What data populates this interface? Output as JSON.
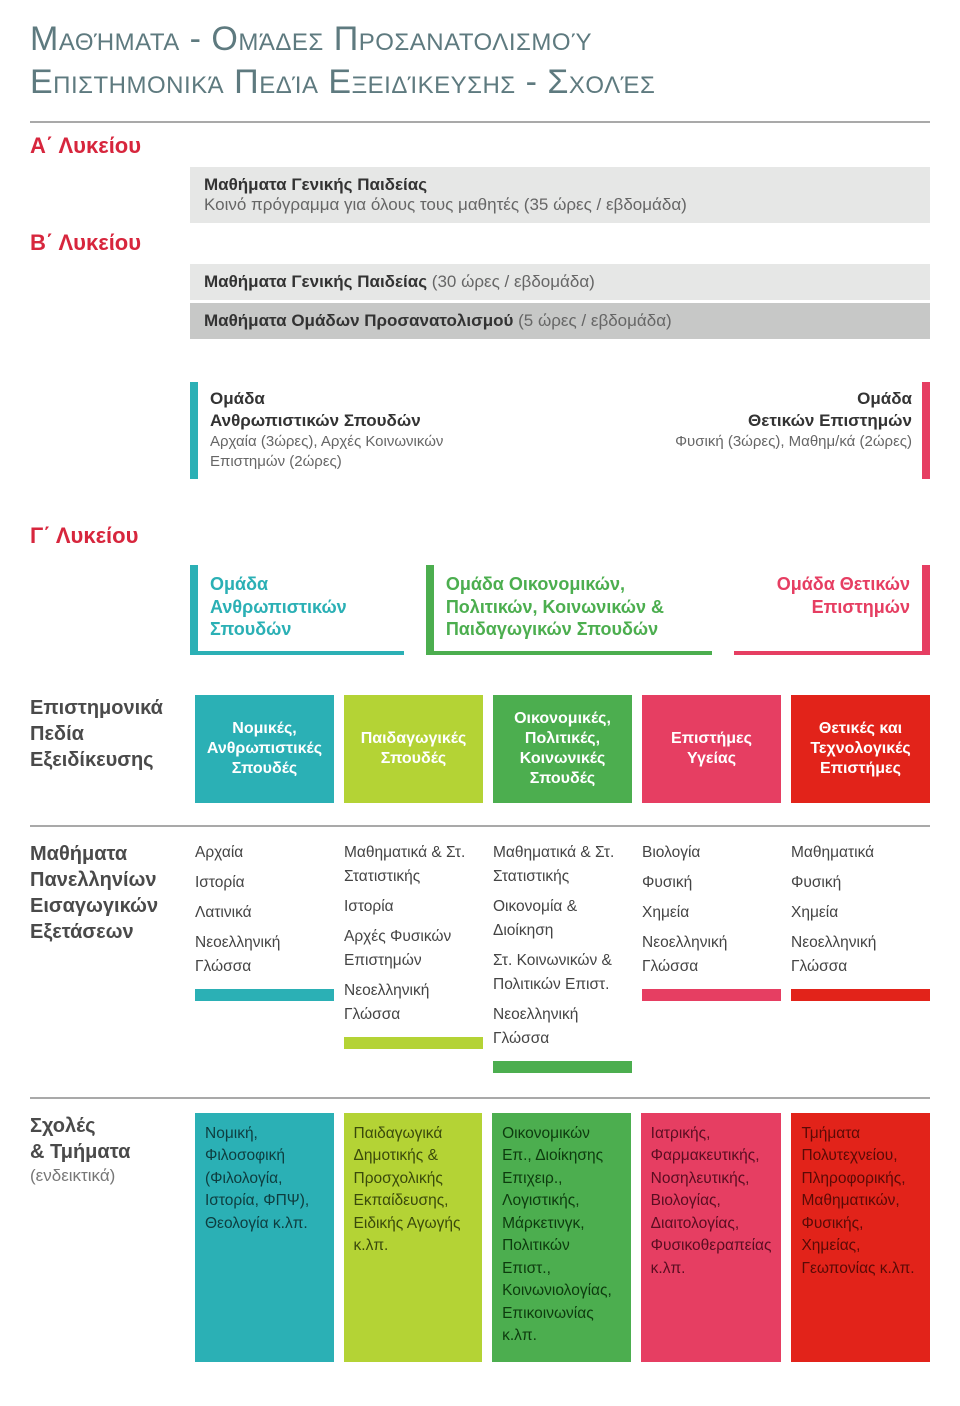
{
  "title": {
    "line1": "Μαθήματα - Ομάδες Προσανατολισμού",
    "line2": "Επιστημονικά Πεδία Εξειδίκευσης - Σχολές",
    "color": "#5e7a7f"
  },
  "colors": {
    "red_label": "#d7263d",
    "dark_label": "#4a4a4a",
    "bar_light": "#e6e7e6",
    "bar_med": "#c7c8c7",
    "teal": "#2bb0b5",
    "lime": "#b4d335",
    "green": "#4cae4f",
    "pink": "#e63e62",
    "red": "#e2231a",
    "divider": "#a9a9a9"
  },
  "gradeA": {
    "label": "Α΄ Λυκείου",
    "barTitle": "Μαθήματα Γενικής Παιδείας",
    "barSub": "Κοινό πρόγραμμα για όλους τους μαθητές (35 ώρες / εβδομάδα)"
  },
  "gradeB": {
    "label": "Β΄ Λυκείου",
    "bar1Title": "Μαθήματα Γενικής Παιδείας",
    "bar1Sub": " (30 ώρες / εβδομάδα)",
    "bar2Title": "Μαθήματα Ομάδων Προσανατολισμού",
    "bar2Sub": " (5 ώρες / εβδομάδα)",
    "leftGroup": {
      "head1": "Ομάδα",
      "head2": "Ανθρωπιστικών Σπουδών",
      "sub": "Αρχαία (3ώρες), Αρχές Κοινωνικών Επιστημών (2ώρες)",
      "color": "#2bb0b5"
    },
    "rightGroup": {
      "head1": "Ομάδα",
      "head2": "Θετικών Επιστημών",
      "sub": "Φυσική (3ώρες), Μαθημ/κά (2ώρες)",
      "color": "#e63e62"
    }
  },
  "gradeC": {
    "label": "Γ΄ Λυκείου",
    "g1": {
      "text": "Ομάδα Ανθρωπιστικών Σπουδών",
      "color": "#2bb0b5"
    },
    "g2": {
      "text": "Ομάδα Οικονομικών, Πολιτικών, Κοινωνικών & Παιδαγωγικών Σπουδών",
      "color": "#4cae4f"
    },
    "g3": {
      "text": "Ομάδα Θετικών Επιστημών",
      "color": "#e63e62"
    }
  },
  "fields": {
    "label1": "Επιστημονικά",
    "label2": "Πεδία",
    "label3": "Εξειδίκευσης",
    "items": [
      {
        "text": "Νομικές, Ανθρωπιστικές Σπουδές",
        "color": "#2bb0b5"
      },
      {
        "text": "Παιδαγωγικές Σπουδές",
        "color": "#b4d335"
      },
      {
        "text": "Οικονομικές, Πολιτικές, Κοινωνικές Σπουδές",
        "color": "#4cae4f"
      },
      {
        "text": "Επιστήμες Υγείας",
        "color": "#e63e62"
      },
      {
        "text": "Θετικές και Τεχνολογικές Επιστήμες",
        "color": "#e2231a"
      }
    ]
  },
  "exams": {
    "label1": "Μαθήματα",
    "label2": "Πανελληνίων",
    "label3": "Εισαγωγικών",
    "label4": "Εξετάσεων",
    "cols": [
      {
        "color": "#2bb0b5",
        "items": [
          "Αρχαία",
          "Ιστορία",
          "Λατινικά",
          "Νεοελληνική Γλώσσα"
        ]
      },
      {
        "color": "#b4d335",
        "items": [
          "Μαθηματικά & Στ. Στατιστικής",
          "Ιστορία",
          "Αρχές Φυσικών Επιστημών",
          "Νεοελληνική Γλώσσα"
        ]
      },
      {
        "color": "#4cae4f",
        "items": [
          "Μαθηματικά & Στ. Στατιστικής",
          "Οικονομία & Διοίκηση",
          "Στ. Κοινωνικών & Πολιτικών Επιστ.",
          "Νεοελληνική Γλώσσα"
        ]
      },
      {
        "color": "#e63e62",
        "items": [
          "Βιολογία",
          "Φυσική",
          "Χημεία",
          "Νεοελληνική Γλώσσα"
        ]
      },
      {
        "color": "#e2231a",
        "items": [
          "Μαθηματικά",
          "Φυσική",
          "Χημεία",
          "Νεοελληνική Γλώσσα"
        ]
      }
    ]
  },
  "schools": {
    "label1": "Σχολές",
    "label2": "& Τμήματα",
    "label3": "(ενδεικτικά)",
    "cols": [
      {
        "bg": "#2bb0b5",
        "fg": "#0e3d3f",
        "text": "Νομική, Φιλοσοφική (Φιλολογία, Ιστορία, ΦΠΨ), Θεολογία κ.λπ."
      },
      {
        "bg": "#b4d335",
        "fg": "#3a4a0b",
        "text": "Παιδαγωγικά Δημοτικής & Προσχολικής Εκπαίδευσης, Ειδικής Αγωγής κ.λπ."
      },
      {
        "bg": "#4cae4f",
        "fg": "#0d3b0e",
        "text": "Οικονομικών Επ., Διοίκησης Επιχειρ., Λογιστικής, Μάρκετινγκ, Πολιτικών Επιστ., Κοινωνιολογίας, Επικοινωνίας κ.λπ."
      },
      {
        "bg": "#e63e62",
        "fg": "#5a0d21",
        "text": "Ιατρικής, Φαρμακευτικής, Νοσηλευτικής, Βιολογίας, Διαιτολογίας, Φυσικοθεραπείας κ.λπ."
      },
      {
        "bg": "#e2231a",
        "fg": "#5a0a06",
        "text": "Τμήματα Πολυτεχνείου, Πληροφορικής, Μαθηματικών, Φυσικής, Χημείας, Γεωπονίας κ.λπ."
      }
    ]
  }
}
